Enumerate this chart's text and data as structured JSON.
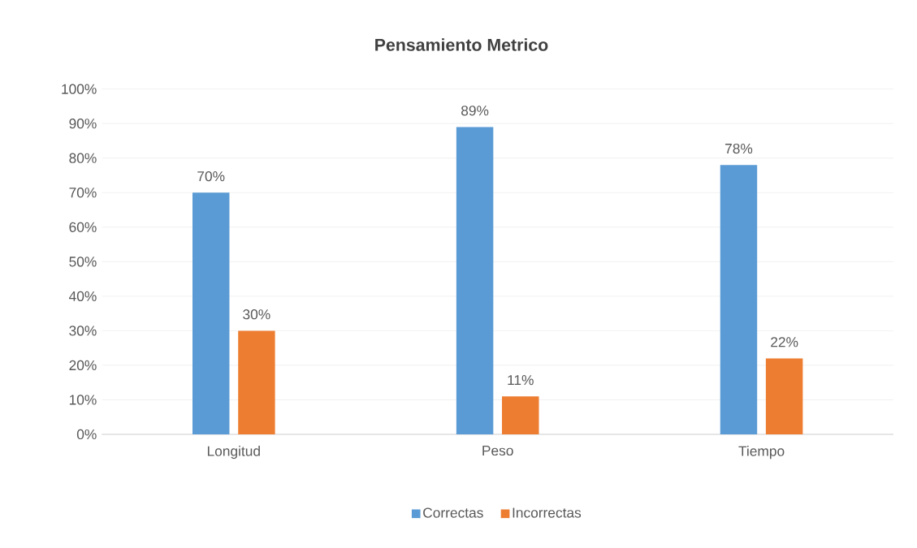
{
  "chart_data": {
    "type": "bar",
    "title": "Pensamiento Metrico",
    "categories": [
      "Longitud",
      "Peso",
      "Tiempo"
    ],
    "series": [
      {
        "name": "Correctas",
        "color": "#5b9bd5",
        "values": [
          70,
          89,
          78
        ],
        "value_labels": [
          "70%",
          "89%",
          "78%"
        ]
      },
      {
        "name": "Incorrectas",
        "color": "#ed7d31",
        "values": [
          30,
          11,
          22
        ],
        "value_labels": [
          "30%",
          "11%",
          "22%"
        ]
      }
    ],
    "ylim": [
      0,
      100
    ],
    "yticks": [
      {
        "value": 0,
        "label": "0%"
      },
      {
        "value": 10,
        "label": "10%"
      },
      {
        "value": 20,
        "label": "20%"
      },
      {
        "value": 30,
        "label": "30%"
      },
      {
        "value": 40,
        "label": "40%"
      },
      {
        "value": 50,
        "label": "50%"
      },
      {
        "value": 60,
        "label": "60%"
      },
      {
        "value": 70,
        "label": "70%"
      },
      {
        "value": 80,
        "label": "80%"
      },
      {
        "value": 90,
        "label": "90%"
      },
      {
        "value": 100,
        "label": "100%"
      }
    ],
    "grid": "y",
    "legend": "bottom"
  }
}
